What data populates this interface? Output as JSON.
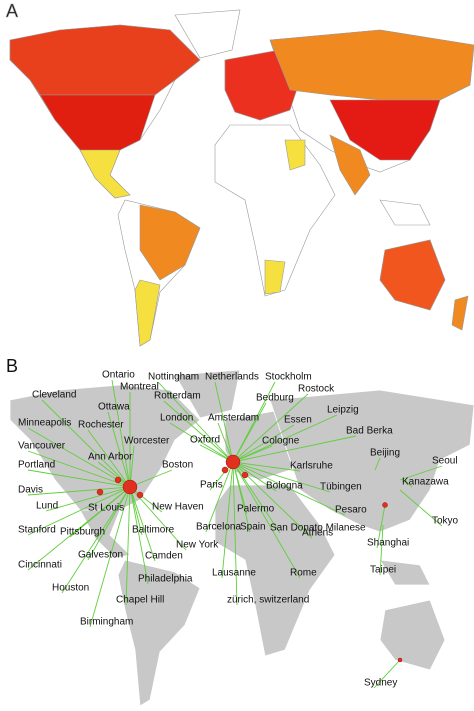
{
  "panel_a": {
    "label": "A"
  },
  "panel_b": {
    "label": "B",
    "cities": [
      "Ontario",
      "Montreal",
      "Nottingham",
      "Netherlands",
      "Stockholm",
      "Rostock",
      "Cleveland",
      "Ottawa",
      "Rotterdam",
      "Bedburg",
      "Leipzig",
      "Minneapolis",
      "Rochester",
      "London",
      "Amsterdam",
      "Essen",
      "Bad Berka",
      "Vancouver",
      "Worcester",
      "Oxford",
      "Cologne",
      "Ann Arbor",
      "Beijing",
      "Seoul",
      "Portland",
      "Boston",
      "Karlsruhe",
      "Kanazawa",
      "Paris",
      "Bologna",
      "Tübingen",
      "Davis",
      "Lund",
      "St Louis",
      "New Haven",
      "Palermo",
      "Pesaro",
      "Tokyo",
      "Stanford",
      "Pittsburgh",
      "Baltimore",
      "Barcelona",
      "Spain",
      "San Donato Milanese",
      "Athens",
      "Shanghai",
      "Cincinnati",
      "Galveston",
      "Camden",
      "New York",
      "Taipei",
      "Houston",
      "Philadelphia",
      "Lausanne",
      "Rome",
      "Chapel Hill",
      "zürich, switzerland",
      "Birmingham",
      "Sydney"
    ]
  }
}
